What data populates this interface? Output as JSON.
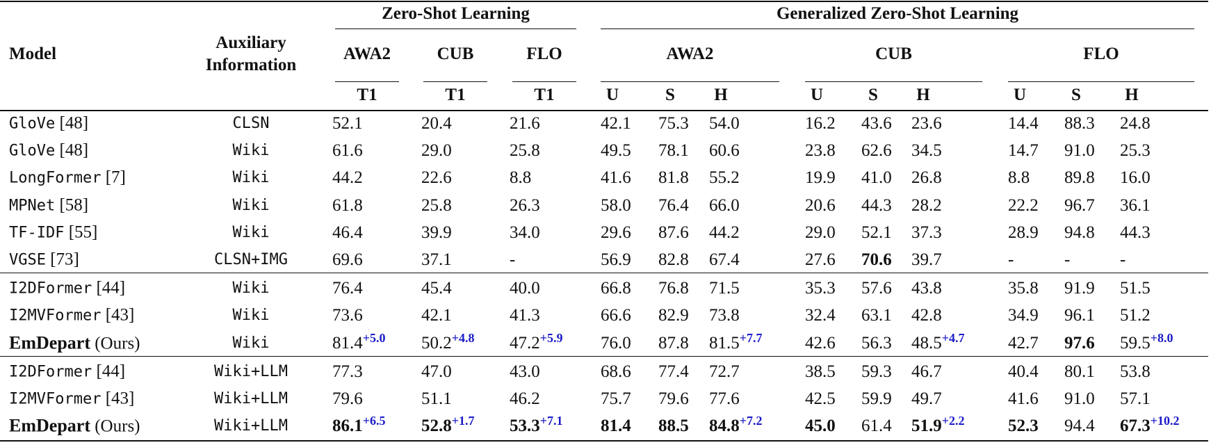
{
  "table": {
    "header": {
      "model": "Model",
      "aux": "Auxiliary Information"
    },
    "groups": [
      {
        "title": "Zero-Shot Learning",
        "datasets": [
          "AWA2",
          "CUB",
          "FLO"
        ],
        "metrics": [
          "T1"
        ]
      },
      {
        "title": "Generalized Zero-Shot Learning",
        "datasets": [
          "AWA2",
          "CUB",
          "FLO"
        ],
        "metrics": [
          "U",
          "S",
          "H"
        ]
      }
    ],
    "sections": [
      [
        {
          "model": "GloVe",
          "ref": "[48]",
          "aux": "CLSN",
          "cells": [
            "52.1",
            "20.4",
            "21.6",
            "42.1",
            "75.3",
            "54.0",
            "16.2",
            "43.6",
            "23.6",
            "14.4",
            "88.3",
            "24.8"
          ]
        },
        {
          "model": "GloVe",
          "ref": "[48]",
          "aux": "Wiki",
          "cells": [
            "61.6",
            "29.0",
            "25.8",
            "49.5",
            "78.1",
            "60.6",
            "23.8",
            "62.6",
            "34.5",
            "14.7",
            "91.0",
            "25.3"
          ]
        },
        {
          "model": "LongFormer",
          "ref": "[7]",
          "aux": "Wiki",
          "cells": [
            "44.2",
            "22.6",
            "8.8",
            "41.6",
            "81.8",
            "55.2",
            "19.9",
            "41.0",
            "26.8",
            "8.8",
            "89.8",
            "16.0"
          ]
        },
        {
          "model": "MPNet",
          "ref": "[58]",
          "aux": "Wiki",
          "cells": [
            "61.8",
            "25.8",
            "26.3",
            "58.0",
            "76.4",
            "66.0",
            "20.6",
            "44.3",
            "28.2",
            "22.2",
            "96.7",
            "36.1"
          ]
        },
        {
          "model": "TF-IDF",
          "ref": "[55]",
          "aux": "Wiki",
          "cells": [
            "46.4",
            "39.9",
            "34.0",
            "29.6",
            "87.6",
            "44.2",
            "29.0",
            "52.1",
            "37.3",
            "28.9",
            "94.8",
            "44.3"
          ]
        },
        {
          "model": "VGSE",
          "ref": "[73]",
          "aux": "CLSN+IMG",
          "cells": [
            "69.6",
            "37.1",
            "-",
            "56.9",
            "82.8",
            "67.4",
            "27.6",
            {
              "value": "70.6",
              "bold": true
            },
            "39.7",
            "-",
            "-",
            "-"
          ]
        }
      ],
      [
        {
          "model": "I2DFormer",
          "ref": "[44]",
          "aux": "Wiki",
          "cells": [
            "76.4",
            "45.4",
            "40.0",
            "66.8",
            "76.8",
            "71.5",
            "35.3",
            "57.6",
            "43.8",
            "35.8",
            "91.9",
            "51.5"
          ]
        },
        {
          "model": "I2MVFormer",
          "ref": "[43]",
          "aux": "Wiki",
          "cells": [
            "73.6",
            "42.1",
            "41.3",
            "66.6",
            "82.9",
            "73.8",
            "32.4",
            "63.1",
            "42.8",
            "34.9",
            "96.1",
            "51.2"
          ]
        },
        {
          "model": "EmDepart",
          "ref": "(Ours)",
          "bold": true,
          "aux": "Wiki",
          "cells": [
            {
              "value": "81.4",
              "gain": "+5.0"
            },
            {
              "value": "50.2",
              "gain": "+4.8"
            },
            {
              "value": "47.2",
              "gain": "+5.9"
            },
            "76.0",
            "87.8",
            {
              "value": "81.5",
              "gain": "+7.7"
            },
            "42.6",
            "56.3",
            {
              "value": "48.5",
              "gain": "+4.7"
            },
            "42.7",
            {
              "value": "97.6",
              "bold": true
            },
            {
              "value": "59.5",
              "gain": "+8.0"
            }
          ]
        }
      ],
      [
        {
          "model": "I2DFormer",
          "ref": "[44]",
          "aux": "Wiki+LLM",
          "cells": [
            "77.3",
            "47.0",
            "43.0",
            "68.6",
            "77.4",
            "72.7",
            "38.5",
            "59.3",
            "46.7",
            "40.4",
            "80.1",
            "53.8"
          ]
        },
        {
          "model": "I2MVFormer",
          "ref": "[43]",
          "aux": "Wiki+LLM",
          "cells": [
            "79.6",
            "51.1",
            "46.2",
            "75.7",
            "79.6",
            "77.6",
            "42.5",
            "59.9",
            "49.7",
            "41.6",
            "91.0",
            "57.1"
          ]
        },
        {
          "model": "EmDepart",
          "ref": "(Ours)",
          "bold": true,
          "aux": "Wiki+LLM",
          "cells": [
            {
              "value": "86.1",
              "gain": "+6.5",
              "bold": true
            },
            {
              "value": "52.8",
              "gain": "+1.7",
              "bold": true
            },
            {
              "value": "53.3",
              "gain": "+7.1",
              "bold": true
            },
            {
              "value": "81.4",
              "bold": true
            },
            {
              "value": "88.5",
              "bold": true
            },
            {
              "value": "84.8",
              "gain": "+7.2",
              "bold": true
            },
            {
              "value": "45.0",
              "bold": true
            },
            "61.4",
            {
              "value": "51.9",
              "gain": "+2.2",
              "bold": true
            },
            {
              "value": "52.3",
              "bold": true
            },
            "94.4",
            {
              "value": "67.3",
              "gain": "+10.2",
              "bold": true
            }
          ]
        }
      ]
    ]
  }
}
